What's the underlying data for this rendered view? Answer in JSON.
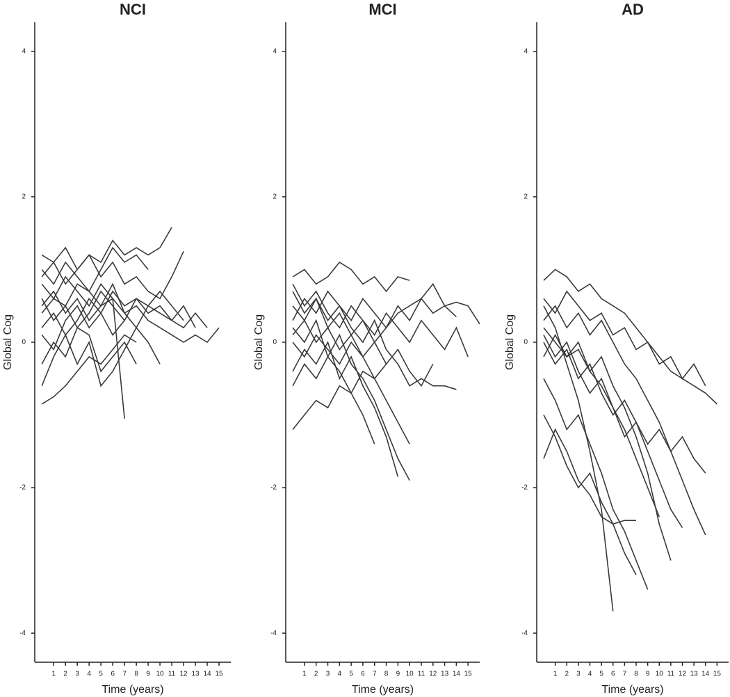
{
  "chart_data": [
    {
      "type": "line",
      "title": "NCI",
      "xlabel": "Time (years)",
      "ylabel": "Global Cog",
      "color": "#3a3a3a",
      "x": [
        0,
        1,
        2,
        3,
        4,
        5,
        6,
        7,
        8,
        9,
        10,
        11,
        12,
        13,
        14,
        15,
        16
      ],
      "xlim": [
        -0.6,
        16
      ],
      "xticks": [
        1,
        2,
        3,
        4,
        5,
        6,
        7,
        8,
        9,
        10,
        11,
        12,
        13,
        14,
        15
      ],
      "ylim": [
        -4.4,
        4.4
      ],
      "yticks": [
        -4,
        -2,
        0,
        2,
        4
      ],
      "series": [
        {
          "values": [
            1.2,
            1.1,
            1.3,
            1.0,
            1.2,
            1.1,
            1.4,
            1.2,
            1.3,
            1.2,
            1.3,
            1.58,
            null,
            null,
            null,
            null,
            null
          ]
        },
        {
          "values": [
            0.4,
            0.6,
            0.5,
            0.8,
            0.7,
            0.5,
            0.6,
            0.4,
            0.5,
            0.3,
            0.2,
            0.1,
            0.0,
            0.1,
            0.0,
            0.2,
            null
          ]
        },
        {
          "values": [
            -0.85,
            -0.75,
            -0.6,
            -0.4,
            -0.2,
            -0.3,
            -0.1,
            0.1,
            0.0,
            null,
            null,
            null,
            null,
            null,
            null,
            null,
            null
          ]
        },
        {
          "values": [
            0.8,
            0.6,
            0.9,
            0.7,
            0.5,
            0.8,
            0.6,
            -1.05,
            null,
            null,
            null,
            null,
            null,
            null,
            null,
            null,
            null
          ]
        },
        {
          "values": [
            0.2,
            0.4,
            0.1,
            0.3,
            0.6,
            0.4,
            0.7,
            0.5,
            0.6,
            0.4,
            0.5,
            0.3,
            0.2,
            0.4,
            0.2,
            null,
            null
          ]
        },
        {
          "values": [
            1.0,
            0.8,
            1.1,
            0.9,
            0.7,
            1.0,
            1.3,
            1.1,
            1.2,
            1.0,
            null,
            null,
            null,
            null,
            null,
            null,
            null
          ]
        },
        {
          "values": [
            -0.3,
            0.0,
            -0.2,
            0.2,
            0.1,
            -0.4,
            -0.2,
            0.0,
            -0.3,
            null,
            null,
            null,
            null,
            null,
            null,
            null,
            null
          ]
        },
        {
          "values": [
            0.6,
            0.3,
            0.5,
            0.2,
            0.4,
            0.7,
            0.5,
            0.3,
            0.6,
            0.5,
            0.7,
            0.5,
            0.3,
            null,
            null,
            null,
            null
          ]
        },
        {
          "values": [
            0.1,
            -0.1,
            0.3,
            0.5,
            0.2,
            0.4,
            0.1,
            0.3,
            null,
            null,
            null,
            null,
            null,
            null,
            null,
            null,
            null
          ]
        },
        {
          "values": [
            0.9,
            1.1,
            0.8,
            1.0,
            1.2,
            0.9,
            1.1,
            0.8,
            0.9,
            0.7,
            0.6,
            0.9,
            1.25,
            null,
            null,
            null,
            null
          ]
        },
        {
          "values": [
            -0.6,
            -0.2,
            0.1,
            -0.3,
            0.0,
            -0.6,
            -0.4,
            -0.1,
            0.2,
            0.0,
            -0.3,
            null,
            null,
            null,
            null,
            null,
            null
          ]
        },
        {
          "values": [
            0.5,
            0.7,
            0.4,
            0.6,
            0.3,
            0.5,
            0.8,
            0.4,
            0.2,
            0.5,
            0.4,
            0.3,
            0.5,
            0.2,
            null,
            null,
            null
          ]
        }
      ]
    },
    {
      "type": "line",
      "title": "MCI",
      "xlabel": "Time (years)",
      "ylabel": "Global Cog",
      "color": "#3a3a3a",
      "x": [
        0,
        1,
        2,
        3,
        4,
        5,
        6,
        7,
        8,
        9,
        10,
        11,
        12,
        13,
        14,
        15,
        16
      ],
      "xlim": [
        -0.6,
        16
      ],
      "xticks": [
        1,
        2,
        3,
        4,
        5,
        6,
        7,
        8,
        9,
        10,
        11,
        12,
        13,
        14,
        15
      ],
      "ylim": [
        -4.4,
        4.4
      ],
      "yticks": [
        -4,
        -2,
        0,
        2,
        4
      ],
      "series": [
        {
          "values": [
            0.9,
            1.0,
            0.8,
            0.9,
            1.1,
            1.0,
            0.8,
            0.9,
            0.7,
            0.9,
            0.85,
            null,
            null,
            null,
            null,
            null,
            null
          ]
        },
        {
          "values": [
            0.2,
            0.0,
            0.3,
            -0.2,
            0.1,
            -0.3,
            -0.5,
            -0.8,
            -1.2,
            -1.6,
            -1.9,
            null,
            null,
            null,
            null,
            null,
            null
          ]
        },
        {
          "values": [
            -1.2,
            -1.0,
            -0.8,
            -0.9,
            -0.6,
            -0.7,
            -0.4,
            -0.5,
            -0.3,
            null,
            null,
            null,
            null,
            null,
            null,
            null,
            null
          ]
        },
        {
          "values": [
            0.5,
            0.3,
            0.6,
            0.2,
            0.4,
            0.1,
            0.3,
            0.0,
            0.2,
            0.4,
            0.5,
            0.6,
            0.4,
            0.5,
            0.55,
            0.5,
            0.25
          ]
        },
        {
          "values": [
            0.0,
            -0.2,
            0.1,
            -0.1,
            -0.3,
            0.0,
            -0.2,
            -0.5,
            -0.8,
            -1.1,
            -1.4,
            null,
            null,
            null,
            null,
            null,
            null
          ]
        },
        {
          "values": [
            0.7,
            0.4,
            0.6,
            0.3,
            0.5,
            0.2,
            0.0,
            0.3,
            -0.1,
            -0.3,
            -0.6,
            -0.5,
            -0.6,
            -0.6,
            -0.65,
            null,
            null
          ]
        },
        {
          "values": [
            -0.4,
            -0.1,
            -0.3,
            0.0,
            -0.5,
            -0.2,
            -0.6,
            -0.9,
            -1.3,
            -1.85,
            null,
            null,
            null,
            null,
            null,
            null,
            null
          ]
        },
        {
          "values": [
            0.3,
            0.6,
            0.4,
            0.7,
            0.5,
            0.3,
            0.6,
            0.4,
            0.2,
            0.5,
            0.3,
            0.6,
            0.8,
            0.5,
            0.35,
            null,
            null
          ]
        },
        {
          "values": [
            -0.6,
            -0.3,
            -0.5,
            -0.2,
            -0.4,
            -0.7,
            -1.0,
            -1.4,
            null,
            null,
            null,
            null,
            null,
            null,
            null,
            null,
            null
          ]
        },
        {
          "values": [
            0.1,
            0.3,
            0.0,
            0.2,
            -0.1,
            0.1,
            -0.2,
            0.0,
            -0.3,
            -0.1,
            -0.4,
            -0.6,
            -0.3,
            null,
            null,
            null,
            null
          ]
        },
        {
          "values": [
            0.8,
            0.5,
            0.7,
            0.4,
            0.2,
            0.5,
            0.3,
            0.1,
            0.4,
            0.2,
            0.0,
            0.3,
            0.1,
            -0.1,
            0.2,
            -0.2,
            null
          ]
        }
      ]
    },
    {
      "type": "line",
      "title": "AD",
      "xlabel": "Time (years)",
      "ylabel": "Global Cog",
      "color": "#3a3a3a",
      "x": [
        0,
        1,
        2,
        3,
        4,
        5,
        6,
        7,
        8,
        9,
        10,
        11,
        12,
        13,
        14,
        15,
        16
      ],
      "xlim": [
        -0.6,
        16
      ],
      "xticks": [
        1,
        2,
        3,
        4,
        5,
        6,
        7,
        8,
        9,
        10,
        11,
        12,
        13,
        14,
        15
      ],
      "ylim": [
        -4.4,
        4.4
      ],
      "yticks": [
        -4,
        -2,
        0,
        2,
        4
      ],
      "series": [
        {
          "values": [
            0.85,
            1.0,
            0.9,
            0.7,
            0.8,
            0.6,
            0.5,
            0.4,
            0.2,
            0.0,
            -0.2,
            -0.4,
            -0.5,
            -0.6,
            -0.7,
            -0.85,
            null
          ]
        },
        {
          "values": [
            0.5,
            0.2,
            -0.3,
            -0.8,
            -1.5,
            -2.3,
            -3.7,
            null,
            null,
            null,
            null,
            null,
            null,
            null,
            null,
            null,
            null
          ]
        },
        {
          "values": [
            0.2,
            0.0,
            -0.2,
            -0.1,
            -0.4,
            -0.6,
            -0.9,
            -1.2,
            -1.6,
            -2.0,
            -2.4,
            null,
            null,
            null,
            null,
            null,
            null
          ]
        },
        {
          "values": [
            -0.5,
            -0.8,
            -1.2,
            -1.0,
            -1.4,
            -1.8,
            -2.3,
            -2.6,
            -3.0,
            -3.4,
            null,
            null,
            null,
            null,
            null,
            null,
            null
          ]
        },
        {
          "values": [
            0.3,
            0.5,
            0.2,
            0.4,
            0.1,
            0.3,
            0.0,
            -0.3,
            -0.5,
            -0.8,
            -1.1,
            -1.5,
            -1.9,
            -2.3,
            -2.65,
            null,
            null
          ]
        },
        {
          "values": [
            -1.0,
            -1.3,
            -1.7,
            -2.0,
            -1.8,
            -2.2,
            -2.5,
            -2.9,
            -3.2,
            null,
            null,
            null,
            null,
            null,
            null,
            null,
            null
          ]
        },
        {
          "values": [
            0.0,
            -0.3,
            -0.1,
            -0.5,
            -0.3,
            -0.7,
            -1.0,
            -0.8,
            -1.1,
            -1.4,
            -1.2,
            -1.5,
            -1.3,
            -1.6,
            -1.8,
            null,
            null
          ]
        },
        {
          "values": [
            -0.2,
            0.1,
            -0.2,
            0.0,
            -0.4,
            -0.2,
            -0.6,
            -0.9,
            -1.3,
            -1.8,
            -2.5,
            -3.0,
            null,
            null,
            null,
            null,
            null
          ]
        },
        {
          "values": [
            0.6,
            0.4,
            0.7,
            0.5,
            0.3,
            0.4,
            0.1,
            0.2,
            -0.1,
            0.0,
            -0.3,
            -0.2,
            -0.5,
            -0.3,
            -0.6,
            null,
            null
          ]
        },
        {
          "values": [
            -1.6,
            -1.2,
            -1.5,
            -1.9,
            -2.1,
            -2.4,
            -2.5,
            -2.45,
            -2.45,
            null,
            null,
            null,
            null,
            null,
            null,
            null,
            null
          ]
        },
        {
          "values": [
            0.1,
            -0.2,
            0.0,
            -0.4,
            -0.7,
            -0.5,
            -0.9,
            -1.3,
            -1.1,
            -1.5,
            -1.9,
            -2.3,
            -2.55,
            null,
            null,
            null,
            null
          ]
        }
      ]
    }
  ]
}
